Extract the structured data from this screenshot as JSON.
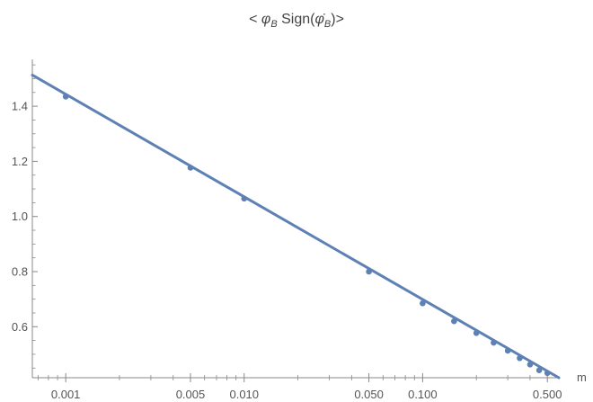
{
  "chart_data": {
    "type": "scatter",
    "title": {
      "prefix": "< ",
      "phi": "φ",
      "sub1": "B",
      "mid": " Sign(",
      "phi_dot": "φ̇",
      "sub2": "B",
      "suffix": ")>"
    },
    "xlabel": "m",
    "ylabel": "",
    "x_scale": "log",
    "xlim": [
      0.00065,
      0.58
    ],
    "ylim": [
      0.415,
      1.57
    ],
    "grid": false,
    "x_major_ticks": [
      {
        "value": 0.001,
        "label": "0.001"
      },
      {
        "value": 0.005,
        "label": "0.005"
      },
      {
        "value": 0.01,
        "label": "0.010"
      },
      {
        "value": 0.05,
        "label": "0.050"
      },
      {
        "value": 0.1,
        "label": "0.100"
      },
      {
        "value": 0.5,
        "label": "0.500"
      }
    ],
    "x_minor_ticks": [
      0.0007,
      0.0008,
      0.0009,
      0.002,
      0.003,
      0.004,
      0.006,
      0.007,
      0.008,
      0.009,
      0.02,
      0.03,
      0.04,
      0.06,
      0.07,
      0.08,
      0.09,
      0.2,
      0.3,
      0.4
    ],
    "y_major_ticks": [
      {
        "value": 0.6,
        "label": "0.6"
      },
      {
        "value": 0.8,
        "label": "0.8"
      },
      {
        "value": 1.0,
        "label": "1.0"
      },
      {
        "value": 1.2,
        "label": "1.2"
      },
      {
        "value": 1.4,
        "label": "1.4"
      }
    ],
    "y_minor_ticks": [
      0.45,
      0.5,
      0.55,
      0.65,
      0.7,
      0.75,
      0.85,
      0.9,
      0.95,
      1.05,
      1.1,
      1.15,
      1.25,
      1.3,
      1.35,
      1.45,
      1.5,
      1.55
    ],
    "series": [
      {
        "kind": "points",
        "x": [
          0.001,
          0.005,
          0.01,
          0.05,
          0.1,
          0.15,
          0.2,
          0.25,
          0.3,
          0.35,
          0.4,
          0.45,
          0.5
        ],
        "y": [
          1.435,
          1.177,
          1.065,
          0.8,
          0.685,
          0.62,
          0.577,
          0.542,
          0.513,
          0.486,
          0.463,
          0.442,
          0.432
        ]
      },
      {
        "kind": "fit-line",
        "x": [
          0.00065,
          0.58
        ],
        "y": [
          1.513,
          0.415
        ]
      }
    ],
    "colors": {
      "series": "#5e81b5",
      "axis": "#888888",
      "text": "#555555"
    }
  }
}
